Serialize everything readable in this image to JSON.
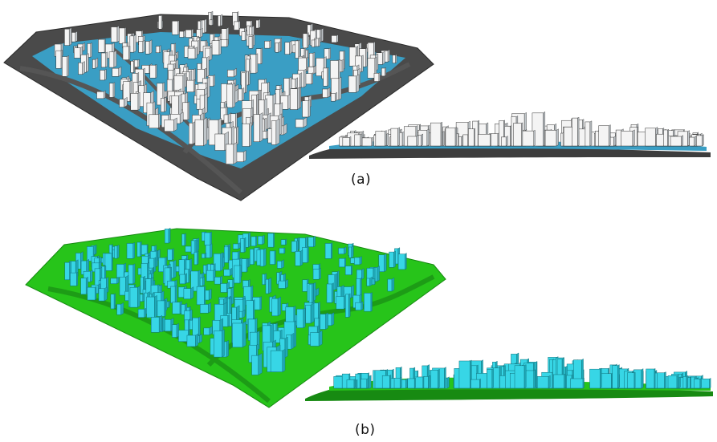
{
  "figure": {
    "panels": [
      {
        "label": "(a)",
        "style": "gray-blue-white"
      },
      {
        "label": "(b)",
        "style": "green-cyan"
      }
    ]
  },
  "colors": {
    "a_ground": "#4a4a4a",
    "a_ground_edge": "#2b2b2b",
    "a_water": "#3a9ec4",
    "a_building": "#f4f4f4",
    "a_building_shadow": "#bfc5c9",
    "b_ground": "#27c41a",
    "b_ground_dark": "#178a12",
    "b_building": "#37d6e6",
    "b_building_shadow": "#1fa9b8"
  }
}
